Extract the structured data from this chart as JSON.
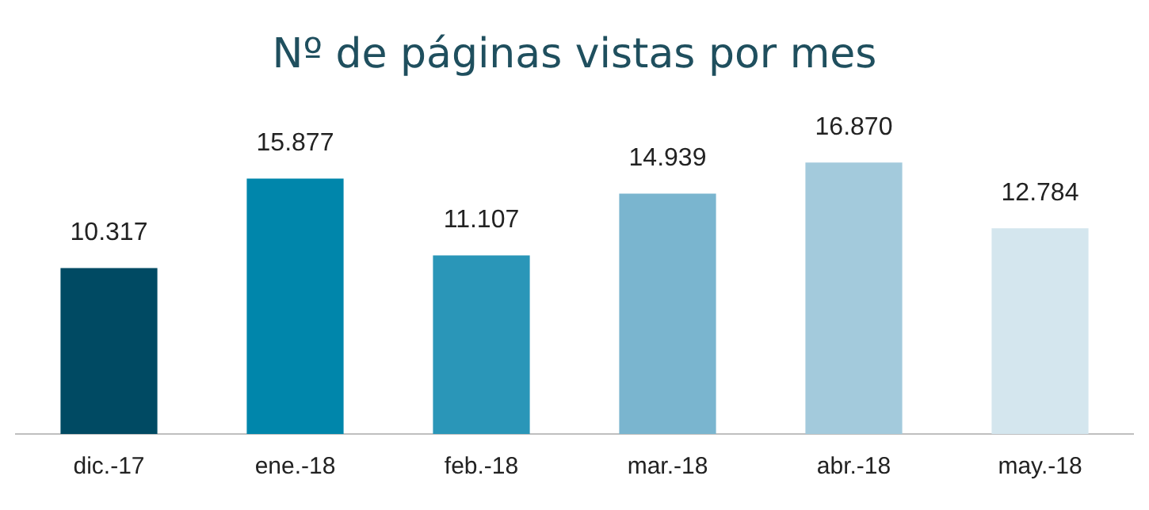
{
  "chart_data": {
    "type": "bar",
    "title": "Nº de páginas vistas por mes",
    "categories": [
      "dic.-17",
      "ene.-18",
      "feb.-18",
      "mar.-18",
      "abr.-18",
      "may.-18"
    ],
    "values": [
      10317,
      15877,
      11107,
      14939,
      16870,
      12784
    ],
    "colors": [
      "#004a63",
      "#0086ab",
      "#2a96b8",
      "#7ab5cf",
      "#a3cadc",
      "#d4e6ee"
    ],
    "value_labels": [
      "10.317",
      "15.877",
      "11.107",
      "14.939",
      "16.870",
      "12.784"
    ]
  }
}
